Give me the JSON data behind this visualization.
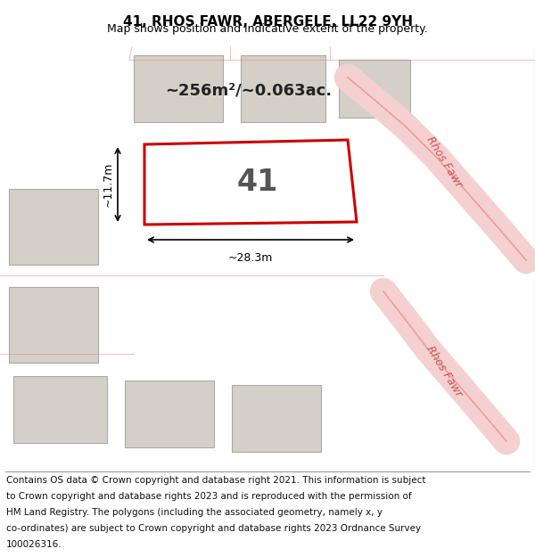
{
  "title": "41, RHOS FAWR, ABERGELE, LL22 9YH",
  "subtitle": "Map shows position and indicative extent of the property.",
  "footer_lines": [
    "Contains OS data © Crown copyright and database right 2021. This information is subject",
    "to Crown copyright and database rights 2023 and is reproduced with the permission of",
    "HM Land Registry. The polygons (including the associated geometry, namely x, y",
    "co-ordinates) are subject to Crown copyright and database rights 2023 Ordnance Survey",
    "100026316."
  ],
  "bg_color": "#e8e4de",
  "area_text": "~256m²/~0.063ac.",
  "label_41": "41",
  "dim_width": "~28.3m",
  "dim_height": "~11.7m",
  "highlight_color": "#cc0000",
  "road_label_1": "Rhos Fawr",
  "road_label_2": "Rhos Fawr",
  "title_fontsize": 11,
  "subtitle_fontsize": 9,
  "footer_fontsize": 7.5
}
